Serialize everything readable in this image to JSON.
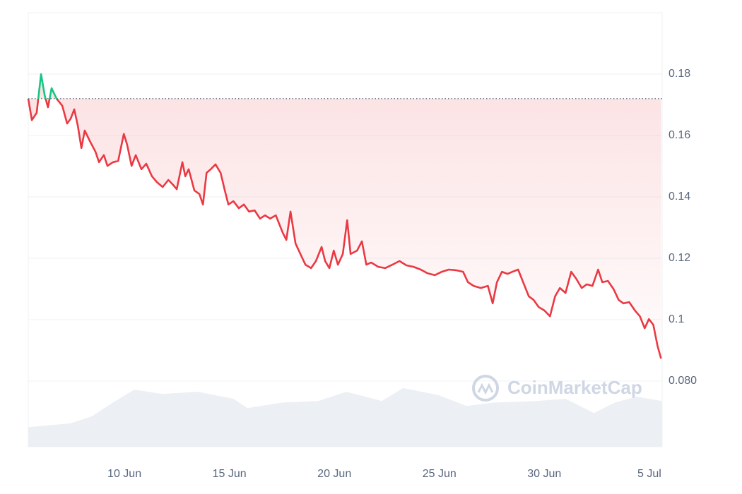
{
  "chart_data": {
    "type": "line",
    "watermark": "CoinMarketCap",
    "baseline": 0.172,
    "xlim": [
      5.42,
      35.61
    ],
    "ylim": [
      0.0586,
      0.2
    ],
    "xticks": [
      {
        "value": 10,
        "label": "10 Jun"
      },
      {
        "value": 15,
        "label": "15 Jun"
      },
      {
        "value": 20,
        "label": "20 Jun"
      },
      {
        "value": 25,
        "label": "25 Jun"
      },
      {
        "value": 30,
        "label": "30 Jun"
      },
      {
        "value": 35,
        "label": "5 Jul"
      }
    ],
    "yticks": [
      {
        "value": 0.08,
        "label": "0.080"
      },
      0.1,
      0.12,
      0.14,
      0.16,
      0.18
    ],
    "grid": true,
    "up_color": "#16c784",
    "down_color": "#ea3943",
    "volume_color": "#eceff3",
    "x": [
      5.42,
      5.59,
      5.82,
      6.03,
      6.2,
      6.36,
      6.53,
      6.77,
      7.04,
      7.27,
      7.44,
      7.61,
      7.78,
      7.95,
      8.11,
      8.35,
      8.62,
      8.79,
      9.02,
      9.19,
      9.46,
      9.7,
      9.97,
      10.13,
      10.34,
      10.54,
      10.81,
      11.04,
      11.31,
      11.55,
      11.82,
      12.09,
      12.32,
      12.49,
      12.76,
      12.9,
      13.06,
      13.33,
      13.57,
      13.74,
      13.91,
      14.11,
      14.34,
      14.58,
      14.78,
      14.95,
      15.19,
      15.45,
      15.69,
      15.93,
      16.2,
      16.46,
      16.7,
      16.94,
      17.21,
      17.54,
      17.71,
      17.91,
      18.15,
      18.38,
      18.62,
      18.89,
      19.12,
      19.39,
      19.56,
      19.76,
      19.97,
      20.17,
      20.4,
      20.61,
      20.77,
      21.08,
      21.31,
      21.52,
      21.75,
      22.09,
      22.42,
      22.76,
      23.1,
      23.43,
      23.77,
      24.11,
      24.44,
      24.78,
      25.12,
      25.45,
      25.79,
      26.13,
      26.36,
      26.63,
      26.97,
      27.31,
      27.54,
      27.74,
      27.98,
      28.25,
      28.48,
      28.75,
      28.99,
      29.26,
      29.49,
      29.73,
      30.0,
      30.27,
      30.51,
      30.74,
      31.01,
      31.28,
      31.52,
      31.78,
      32.02,
      32.29,
      32.56,
      32.76,
      33.03,
      33.3,
      33.54,
      33.77,
      34.04,
      34.31,
      34.55,
      34.78,
      34.98,
      35.19,
      35.39,
      35.56
    ],
    "values": [
      0.172,
      0.165,
      0.1674,
      0.18,
      0.1731,
      0.1692,
      0.1754,
      0.172,
      0.1697,
      0.1639,
      0.1655,
      0.1685,
      0.1632,
      0.1559,
      0.1616,
      0.1582,
      0.1547,
      0.1513,
      0.1536,
      0.1501,
      0.1513,
      0.1517,
      0.1605,
      0.157,
      0.1501,
      0.1536,
      0.149,
      0.1508,
      0.1467,
      0.1448,
      0.1432,
      0.1455,
      0.1439,
      0.1425,
      0.1513,
      0.1467,
      0.149,
      0.1421,
      0.1409,
      0.1375,
      0.1478,
      0.149,
      0.1506,
      0.1478,
      0.1421,
      0.1375,
      0.1386,
      0.1363,
      0.1375,
      0.1352,
      0.1356,
      0.1329,
      0.134,
      0.1329,
      0.134,
      0.1283,
      0.126,
      0.1352,
      0.1248,
      0.1214,
      0.1179,
      0.1168,
      0.1191,
      0.1237,
      0.1191,
      0.1168,
      0.1225,
      0.1179,
      0.1214,
      0.1324,
      0.1214,
      0.1225,
      0.1255,
      0.1179,
      0.1186,
      0.1172,
      0.1168,
      0.1179,
      0.1191,
      0.1177,
      0.1172,
      0.1163,
      0.1151,
      0.1145,
      0.1156,
      0.1163,
      0.1161,
      0.1156,
      0.1122,
      0.111,
      0.1103,
      0.111,
      0.1053,
      0.1122,
      0.1156,
      0.1149,
      0.1156,
      0.1163,
      0.1122,
      0.1076,
      0.1064,
      0.1041,
      0.103,
      0.1011,
      0.1076,
      0.1103,
      0.1087,
      0.1156,
      0.1133,
      0.1103,
      0.1115,
      0.111,
      0.1163,
      0.1122,
      0.1126,
      0.1099,
      0.1064,
      0.1053,
      0.1057,
      0.103,
      0.1011,
      0.0972,
      0.1002,
      0.0983,
      0.0914,
      0.0873
    ],
    "volume_x": [
      5.42,
      7.44,
      8.45,
      9.46,
      10.47,
      11.82,
      13.5,
      15.19,
      15.86,
      17.54,
      19.23,
      20.57,
      22.26,
      23.27,
      24.95,
      26.3,
      27.64,
      29.66,
      31.01,
      32.36,
      33.37,
      34.38,
      35.61
    ],
    "volume_values": [
      0.065,
      0.0662,
      0.0685,
      0.073,
      0.0772,
      0.0758,
      0.0765,
      0.0742,
      0.0712,
      0.073,
      0.0735,
      0.0765,
      0.0735,
      0.0777,
      0.0754,
      0.0719,
      0.073,
      0.0735,
      0.0742,
      0.0696,
      0.073,
      0.0749,
      0.0735
    ]
  }
}
